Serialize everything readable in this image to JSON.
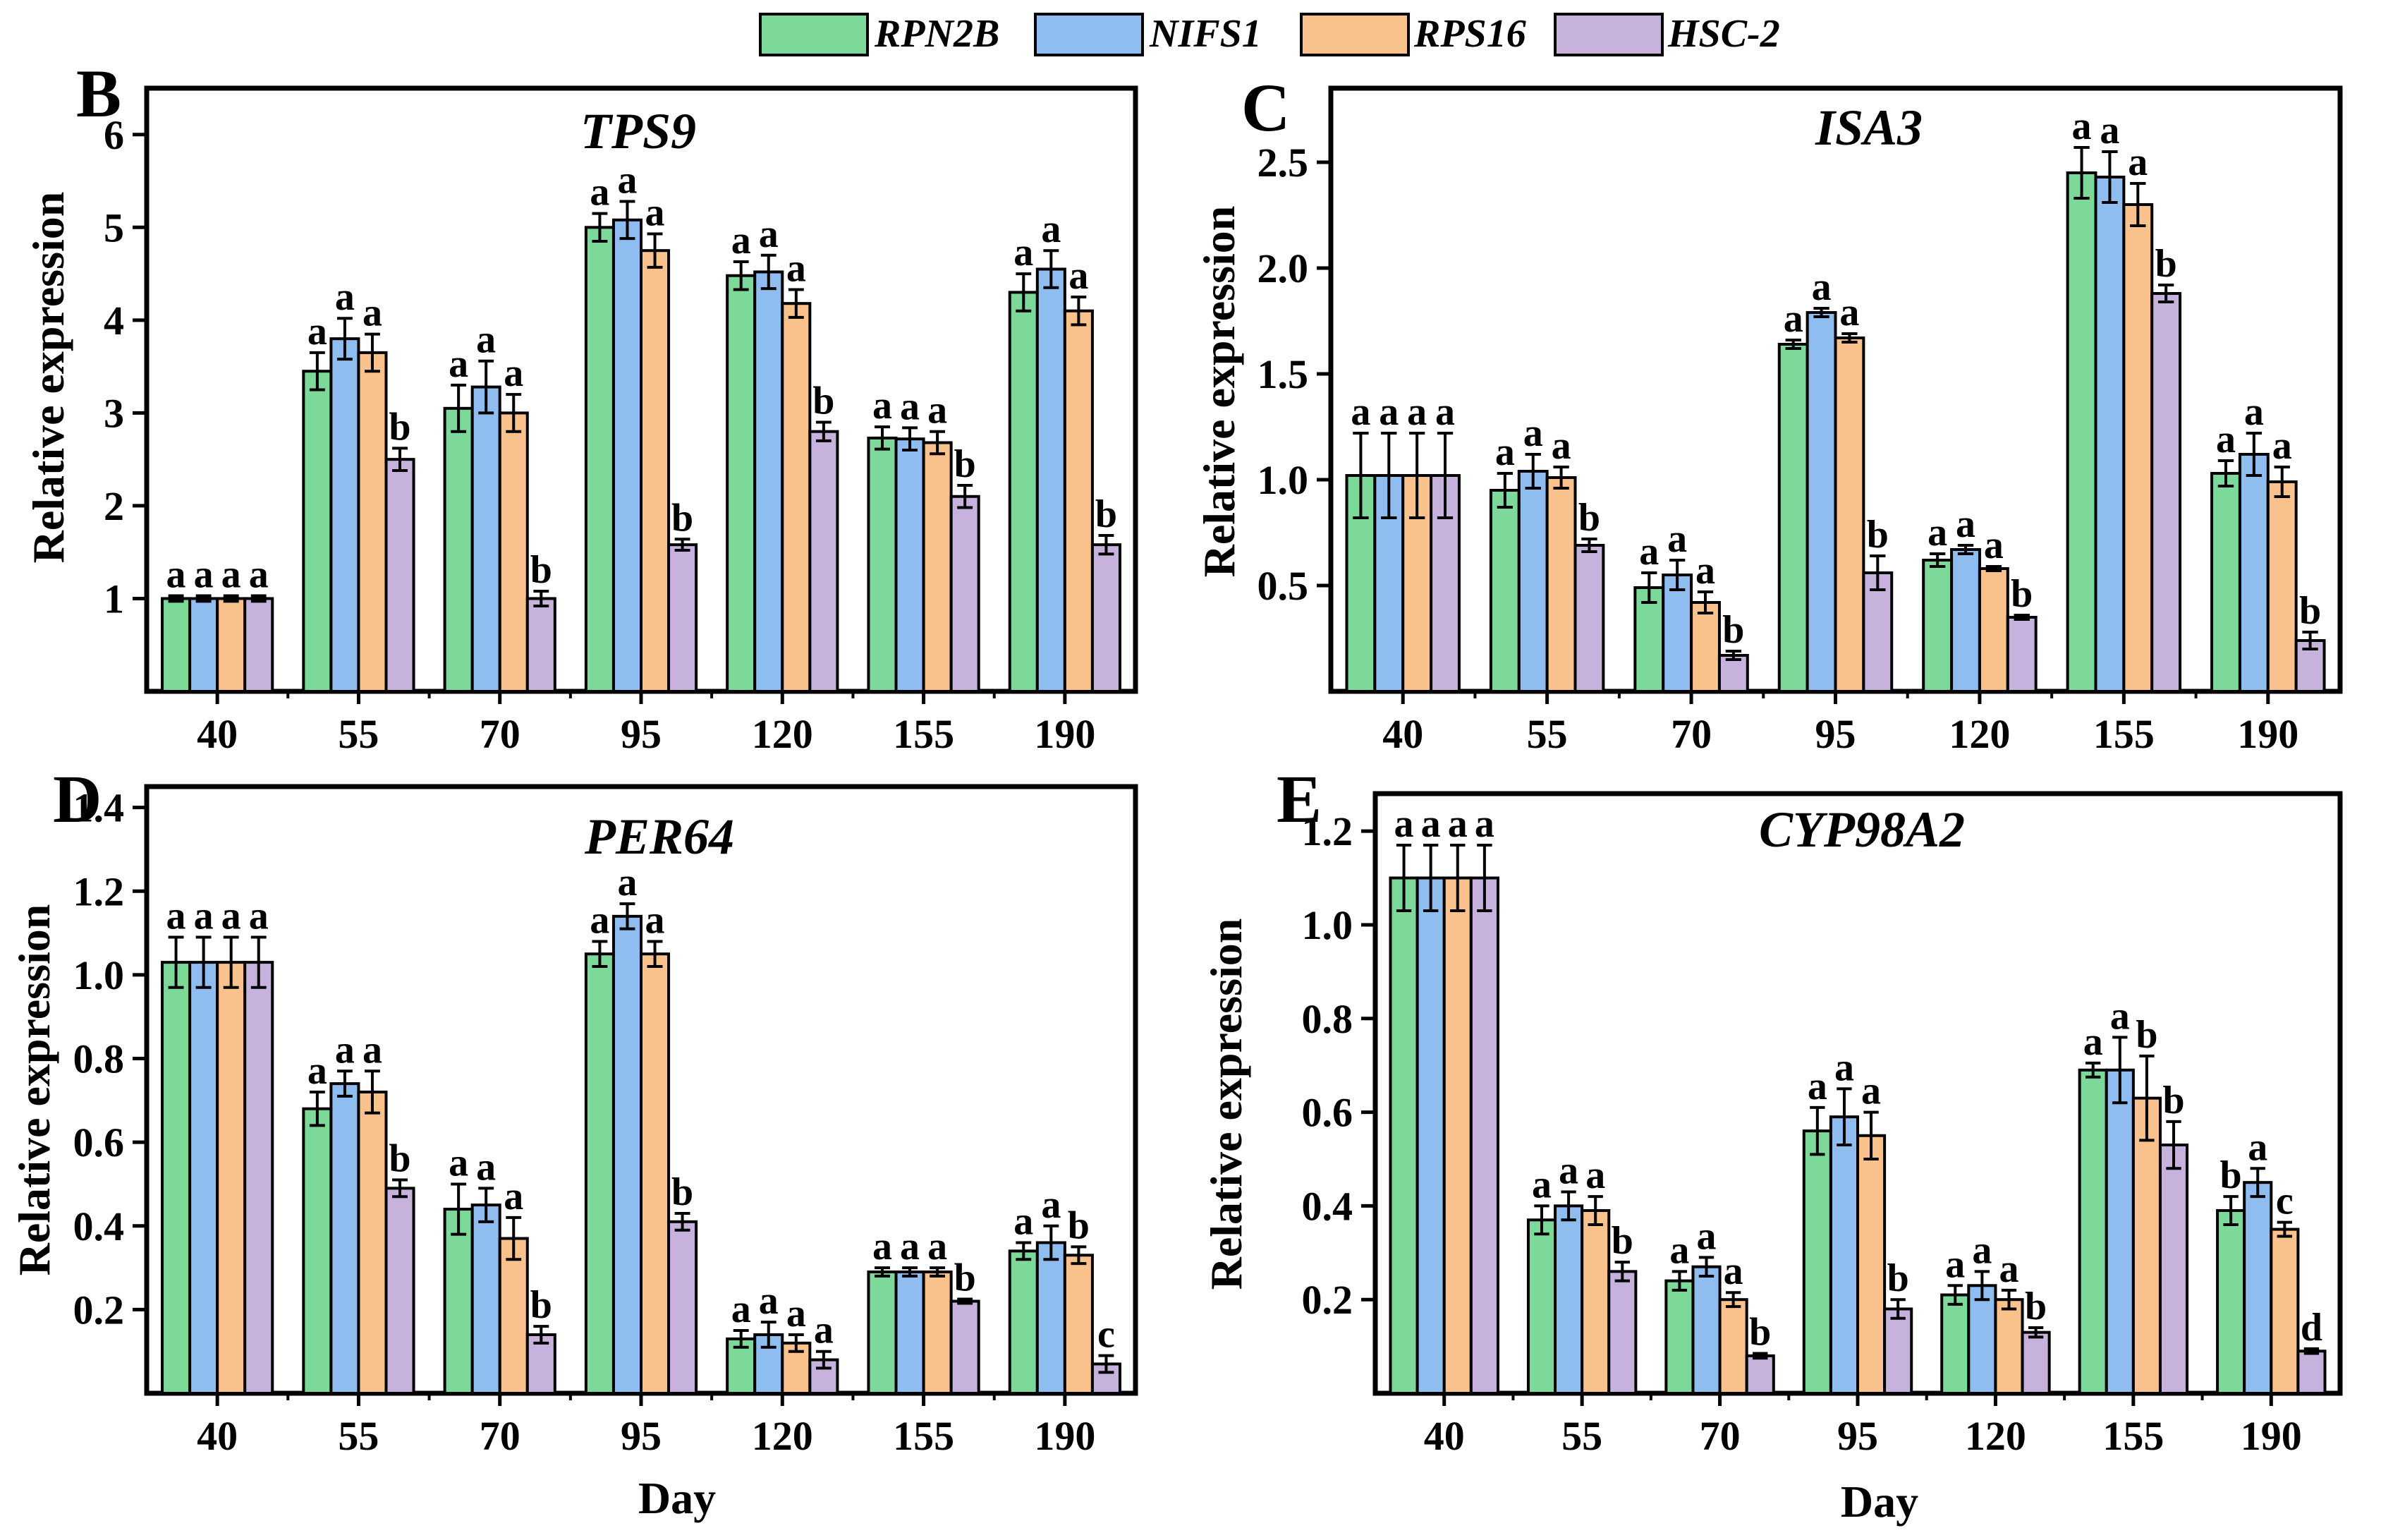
{
  "legend": [
    {
      "name": "RPN2B",
      "color": "#7dd99a"
    },
    {
      "name": "NIFS1",
      "color": "#8fbdf0"
    },
    {
      "name": "RPS16",
      "color": "#f9c18c"
    },
    {
      "name": "HSC-2",
      "color": "#c7b2de"
    }
  ],
  "colors": {
    "RPN2B": "#7dd99a",
    "NIFS1": "#8fbdf0",
    "RPS16": "#f9c18c",
    "HSC-2": "#c7b2de"
  },
  "chart_data": [
    {
      "type": "bar",
      "panel": "B",
      "title": "TPS9",
      "xlabel": "",
      "ylabel": "Relative expression",
      "categories": [
        "40",
        "55",
        "70",
        "95",
        "120",
        "155",
        "190"
      ],
      "ylim": [
        0.0,
        6.5
      ],
      "yticks": [
        1,
        2,
        3,
        4,
        5,
        6
      ],
      "ytick_labels": [
        "1",
        "2",
        "3",
        "4",
        "5",
        "6"
      ],
      "series": [
        {
          "name": "RPN2B",
          "values": [
            1.0,
            3.45,
            3.05,
            5.0,
            4.48,
            2.73,
            4.3
          ],
          "errors": [
            0.03,
            0.2,
            0.25,
            0.15,
            0.15,
            0.12,
            0.2
          ],
          "letters": [
            "a",
            "a",
            "a",
            "a",
            "a",
            "a",
            "a"
          ]
        },
        {
          "name": "NIFS1",
          "values": [
            1.0,
            3.8,
            3.28,
            5.08,
            4.52,
            2.72,
            4.55
          ],
          "errors": [
            0.03,
            0.22,
            0.28,
            0.2,
            0.18,
            0.12,
            0.2
          ],
          "letters": [
            "a",
            "a",
            "a",
            "a",
            "a",
            "a",
            "a"
          ]
        },
        {
          "name": "RPS16",
          "values": [
            1.0,
            3.65,
            3.0,
            4.75,
            4.18,
            2.68,
            4.1
          ],
          "errors": [
            0.03,
            0.2,
            0.2,
            0.18,
            0.15,
            0.12,
            0.15
          ],
          "letters": [
            "a",
            "a",
            "a",
            "a",
            "a",
            "a",
            "a"
          ]
        },
        {
          "name": "HSC-2",
          "values": [
            1.0,
            2.5,
            1.0,
            1.58,
            2.8,
            2.1,
            1.58
          ],
          "errors": [
            0.03,
            0.12,
            0.08,
            0.06,
            0.1,
            0.12,
            0.1
          ],
          "letters": [
            "a",
            "b",
            "b",
            "b",
            "b",
            "b",
            "b"
          ]
        }
      ]
    },
    {
      "type": "bar",
      "panel": "C",
      "title": "ISA3",
      "xlabel": "",
      "ylabel": "Relative expression",
      "categories": [
        "40",
        "55",
        "70",
        "95",
        "120",
        "155",
        "190"
      ],
      "ylim": [
        0.0,
        2.85
      ],
      "yticks": [
        0.5,
        1.0,
        1.5,
        2.0,
        2.5
      ],
      "ytick_labels": [
        "0.5",
        "1.0",
        "1.5",
        "2.0",
        "2.5"
      ],
      "series": [
        {
          "name": "RPN2B",
          "values": [
            1.02,
            0.95,
            0.49,
            1.64,
            0.62,
            2.45,
            1.03
          ],
          "errors": [
            0.2,
            0.08,
            0.07,
            0.02,
            0.03,
            0.12,
            0.06
          ],
          "letters": [
            "a",
            "a",
            "a",
            "a",
            "a",
            "a",
            "a"
          ]
        },
        {
          "name": "NIFS1",
          "values": [
            1.02,
            1.04,
            0.55,
            1.79,
            0.67,
            2.43,
            1.12
          ],
          "errors": [
            0.2,
            0.08,
            0.07,
            0.02,
            0.02,
            0.12,
            0.1
          ],
          "letters": [
            "a",
            "a",
            "a",
            "a",
            "a",
            "a",
            "a"
          ]
        },
        {
          "name": "RPS16",
          "values": [
            1.02,
            1.01,
            0.42,
            1.67,
            0.58,
            2.3,
            0.99
          ],
          "errors": [
            0.2,
            0.05,
            0.05,
            0.02,
            0.01,
            0.1,
            0.07
          ],
          "letters": [
            "a",
            "a",
            "a",
            "a",
            "a",
            "a",
            "a"
          ]
        },
        {
          "name": "HSC-2",
          "values": [
            1.02,
            0.69,
            0.17,
            0.56,
            0.35,
            1.88,
            0.24
          ],
          "errors": [
            0.2,
            0.03,
            0.02,
            0.08,
            0.01,
            0.04,
            0.04
          ],
          "letters": [
            "a",
            "b",
            "b",
            "b",
            "b",
            "b",
            "b"
          ]
        }
      ]
    },
    {
      "type": "bar",
      "panel": "D",
      "title": "PER64",
      "xlabel": "Day",
      "ylabel": "Relative expression",
      "categories": [
        "40",
        "55",
        "70",
        "95",
        "120",
        "155",
        "190"
      ],
      "ylim": [
        0.0,
        1.45
      ],
      "yticks": [
        0.2,
        0.4,
        0.6,
        0.8,
        1.0,
        1.2,
        1.4
      ],
      "ytick_labels": [
        "0.2",
        "0.4",
        "0.6",
        "0.8",
        "1.0",
        "1.2",
        "1.4"
      ],
      "series": [
        {
          "name": "RPN2B",
          "values": [
            1.03,
            0.68,
            0.44,
            1.05,
            0.13,
            0.29,
            0.34
          ],
          "errors": [
            0.06,
            0.04,
            0.06,
            0.03,
            0.02,
            0.01,
            0.02
          ],
          "letters": [
            "a",
            "a",
            "a",
            "a",
            "a",
            "a",
            "a"
          ]
        },
        {
          "name": "NIFS1",
          "values": [
            1.03,
            0.74,
            0.45,
            1.14,
            0.14,
            0.29,
            0.36
          ],
          "errors": [
            0.06,
            0.03,
            0.04,
            0.03,
            0.03,
            0.01,
            0.04
          ],
          "letters": [
            "a",
            "a",
            "a",
            "a",
            "a",
            "a",
            "a"
          ]
        },
        {
          "name": "RPS16",
          "values": [
            1.03,
            0.72,
            0.37,
            1.05,
            0.12,
            0.29,
            0.33
          ],
          "errors": [
            0.06,
            0.05,
            0.05,
            0.03,
            0.02,
            0.01,
            0.02
          ],
          "letters": [
            "a",
            "a",
            "a",
            "a",
            "a",
            "a",
            "b"
          ]
        },
        {
          "name": "HSC-2",
          "values": [
            1.03,
            0.49,
            0.14,
            0.41,
            0.08,
            0.22,
            0.07
          ],
          "errors": [
            0.06,
            0.02,
            0.02,
            0.02,
            0.02,
            0.005,
            0.02
          ],
          "letters": [
            "a",
            "b",
            "b",
            "b",
            "a",
            "b",
            "c"
          ]
        }
      ]
    },
    {
      "type": "bar",
      "panel": "E",
      "title": "CYP98A2",
      "xlabel": "Day",
      "ylabel": "Relative expression",
      "categories": [
        "40",
        "55",
        "70",
        "95",
        "120",
        "155",
        "190"
      ],
      "ylim": [
        0.0,
        1.28
      ],
      "yticks": [
        0.2,
        0.4,
        0.6,
        0.8,
        1.0,
        1.2
      ],
      "ytick_labels": [
        "0.2",
        "0.4",
        "0.6",
        "0.8",
        "1.0",
        "1.2"
      ],
      "series": [
        {
          "name": "RPN2B",
          "values": [
            1.1,
            0.37,
            0.24,
            0.56,
            0.21,
            0.69,
            0.39
          ],
          "errors": [
            0.07,
            0.03,
            0.02,
            0.05,
            0.02,
            0.015,
            0.03
          ],
          "letters": [
            "a",
            "a",
            "a",
            "a",
            "a",
            "a",
            "b"
          ]
        },
        {
          "name": "NIFS1",
          "values": [
            1.1,
            0.4,
            0.27,
            0.59,
            0.23,
            0.69,
            0.45
          ],
          "errors": [
            0.07,
            0.03,
            0.02,
            0.06,
            0.03,
            0.07,
            0.03
          ],
          "letters": [
            "a",
            "a",
            "a",
            "a",
            "a",
            "a",
            "a"
          ]
        },
        {
          "name": "RPS16",
          "values": [
            1.1,
            0.39,
            0.2,
            0.55,
            0.2,
            0.63,
            0.35
          ],
          "errors": [
            0.07,
            0.03,
            0.015,
            0.05,
            0.02,
            0.09,
            0.015
          ],
          "letters": [
            "a",
            "a",
            "a",
            "a",
            "a",
            "b",
            "c"
          ]
        },
        {
          "name": "HSC-2",
          "values": [
            1.1,
            0.26,
            0.08,
            0.18,
            0.13,
            0.53,
            0.09
          ],
          "errors": [
            0.07,
            0.02,
            0.005,
            0.02,
            0.01,
            0.05,
            0.005
          ],
          "letters": [
            "a",
            "b",
            "b",
            "b",
            "b",
            "b",
            "d"
          ]
        }
      ]
    }
  ]
}
